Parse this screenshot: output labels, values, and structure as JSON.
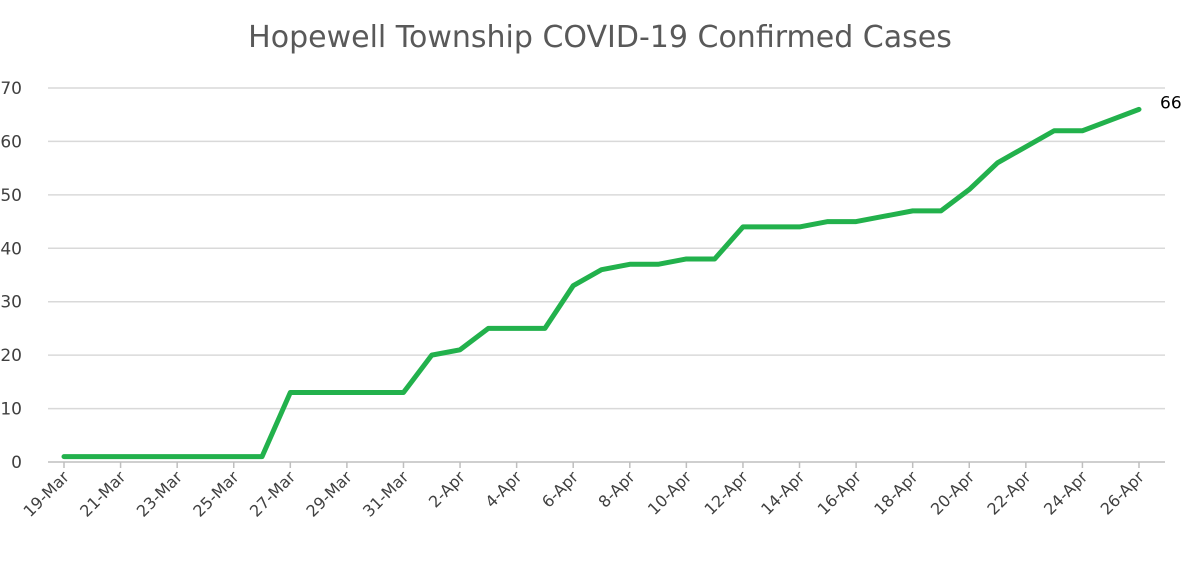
{
  "chart_data": {
    "type": "line",
    "title": "Hopewell Township COVID-19 Confirmed Cases",
    "xlabel": "",
    "ylabel": "",
    "ylim": [
      0,
      70
    ],
    "yticks": [
      0,
      10,
      20,
      30,
      40,
      50,
      60,
      70
    ],
    "grid": true,
    "legend": "none",
    "line_color": "#22b14c",
    "x": [
      "19-Mar",
      "20-Mar",
      "21-Mar",
      "22-Mar",
      "23-Mar",
      "24-Mar",
      "25-Mar",
      "26-Mar",
      "27-Mar",
      "28-Mar",
      "29-Mar",
      "30-Mar",
      "31-Mar",
      "1-Apr",
      "2-Apr",
      "3-Apr",
      "4-Apr",
      "5-Apr",
      "6-Apr",
      "7-Apr",
      "8-Apr",
      "9-Apr",
      "10-Apr",
      "11-Apr",
      "12-Apr",
      "13-Apr",
      "14-Apr",
      "15-Apr",
      "16-Apr",
      "17-Apr",
      "18-Apr",
      "19-Apr",
      "20-Apr",
      "21-Apr",
      "22-Apr",
      "23-Apr",
      "24-Apr",
      "25-Apr",
      "26-Apr"
    ],
    "xtick_labels": [
      "19-Mar",
      "21-Mar",
      "23-Mar",
      "25-Mar",
      "27-Mar",
      "29-Mar",
      "31-Mar",
      "2-Apr",
      "4-Apr",
      "6-Apr",
      "8-Apr",
      "10-Apr",
      "12-Apr",
      "14-Apr",
      "16-Apr",
      "18-Apr",
      "20-Apr",
      "22-Apr",
      "24-Apr",
      "26-Apr"
    ],
    "series": [
      {
        "values": [
          1,
          1,
          1,
          1,
          1,
          1,
          1,
          1,
          13,
          13,
          13,
          13,
          13,
          20,
          21,
          25,
          25,
          25,
          33,
          36,
          37,
          37,
          38,
          38,
          44,
          44,
          44,
          45,
          45,
          46,
          47,
          47,
          51,
          56,
          59,
          62,
          62,
          64,
          66
        ]
      }
    ],
    "annotations": [
      {
        "x": "26-Apr",
        "text": "66"
      }
    ]
  }
}
